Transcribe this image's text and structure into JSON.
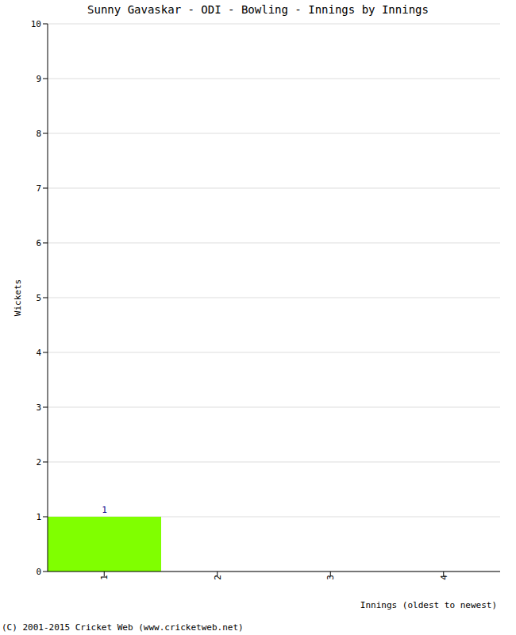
{
  "chart_data": {
    "type": "bar",
    "title": "Sunny Gavaskar - ODI - Bowling - Innings by Innings",
    "x_label": "Innings (oldest to newest)",
    "y_label": "Wickets",
    "footer": "(C) 2001-2015 Cricket Web (www.cricketweb.net)",
    "categories": [
      "1",
      "2",
      "3",
      "4"
    ],
    "values": [
      1,
      0,
      0,
      0
    ],
    "color": "#80ff00",
    "ylim": [
      0,
      10
    ],
    "yticks": [
      0,
      1,
      2,
      3,
      4,
      5,
      6,
      7,
      8,
      9,
      10
    ],
    "grid": true,
    "data_labels": true
  }
}
